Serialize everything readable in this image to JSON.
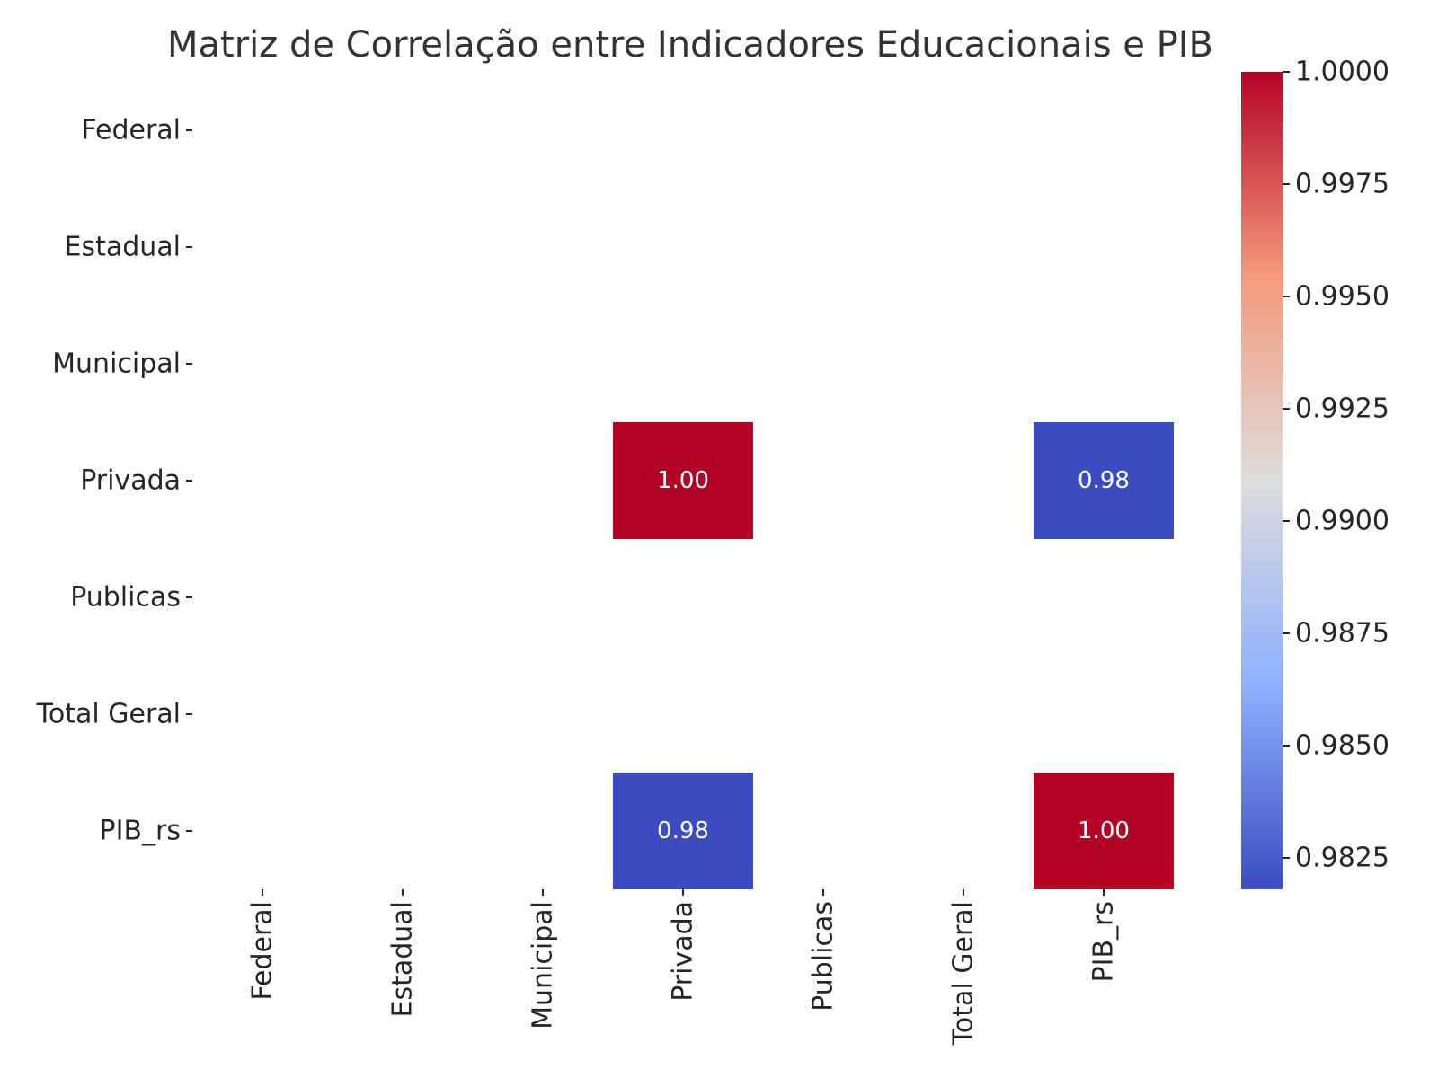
{
  "chart_data": {
    "type": "heatmap",
    "title": "Matriz de Correlação entre Indicadores Educacionais e PIB",
    "rows": [
      "Federal",
      "Estadual",
      "Municipal",
      "Privada",
      "Publicas",
      "Total Geral",
      "PIB_rs"
    ],
    "columns": [
      "Federal",
      "Estadual",
      "Municipal",
      "Privada",
      "Publicas",
      "Total Geral",
      "PIB_rs"
    ],
    "cells": [
      {
        "row": "Privada",
        "column": "Privada",
        "value": 1.0,
        "label": "1.00"
      },
      {
        "row": "Privada",
        "column": "PIB_rs",
        "value": 0.9818,
        "label": "0.98"
      },
      {
        "row": "PIB_rs",
        "column": "Privada",
        "value": 0.9818,
        "label": "0.98"
      },
      {
        "row": "PIB_rs",
        "column": "PIB_rs",
        "value": 1.0,
        "label": "1.00"
      }
    ],
    "missing_cells": "blank",
    "colormap": "coolwarm",
    "colorbar": {
      "range": [
        0.9818,
        1.0
      ],
      "ticks": [
        0.9825,
        0.985,
        0.9875,
        0.99,
        0.9925,
        0.995,
        0.9975,
        1.0
      ],
      "tick_labels": [
        "0.9825",
        "0.9850",
        "0.9875",
        "0.9900",
        "0.9925",
        "0.9950",
        "0.9975",
        "1.0000"
      ]
    }
  }
}
